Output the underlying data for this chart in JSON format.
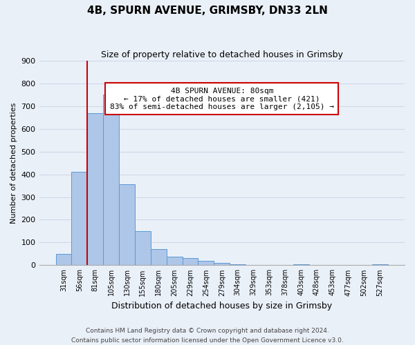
{
  "title": "4B, SPURN AVENUE, GRIMSBY, DN33 2LN",
  "subtitle": "Size of property relative to detached houses in Grimsby",
  "xlabel": "Distribution of detached houses by size in Grimsby",
  "ylabel": "Number of detached properties",
  "bin_labels": [
    "31sqm",
    "56sqm",
    "81sqm",
    "105sqm",
    "130sqm",
    "155sqm",
    "180sqm",
    "205sqm",
    "229sqm",
    "254sqm",
    "279sqm",
    "304sqm",
    "329sqm",
    "353sqm",
    "378sqm",
    "403sqm",
    "428sqm",
    "453sqm",
    "477sqm",
    "502sqm",
    "527sqm"
  ],
  "bar_heights": [
    50,
    410,
    670,
    750,
    355,
    150,
    70,
    38,
    30,
    18,
    10,
    5,
    0,
    0,
    0,
    5,
    0,
    0,
    0,
    0,
    5
  ],
  "bar_color": "#aec6e8",
  "bar_edge_color": "#5a9ad5",
  "ylim": [
    0,
    900
  ],
  "yticks": [
    0,
    100,
    200,
    300,
    400,
    500,
    600,
    700,
    800,
    900
  ],
  "annotation_title": "4B SPURN AVENUE: 80sqm",
  "annotation_line1": "← 17% of detached houses are smaller (421)",
  "annotation_line2": "83% of semi-detached houses are larger (2,105) →",
  "annotation_box_color": "#ffffff",
  "annotation_box_edge": "#cc0000",
  "property_marker_bin_index": 2,
  "footnote1": "Contains HM Land Registry data © Crown copyright and database right 2024.",
  "footnote2": "Contains public sector information licensed under the Open Government Licence v3.0.",
  "grid_color": "#d0d8e8",
  "background_color": "#eaf0f8",
  "title_fontsize": 11,
  "subtitle_fontsize": 9,
  "xlabel_fontsize": 9,
  "ylabel_fontsize": 8,
  "xtick_fontsize": 7,
  "ytick_fontsize": 8,
  "footnote_fontsize": 6.5,
  "annotation_fontsize": 8
}
